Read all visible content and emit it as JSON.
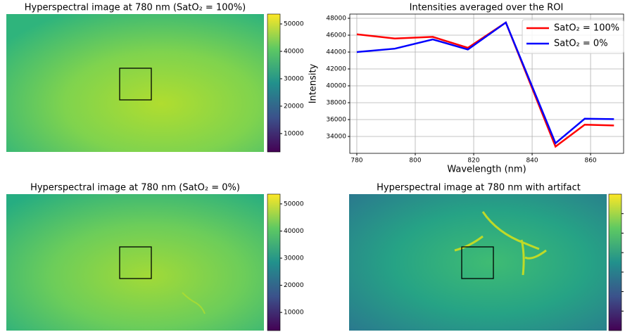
{
  "chart_data": [
    {
      "type": "heatmap",
      "title": "Hyperspectral image at 780 nm (SatO₂ = 100%)",
      "clim": [
        3300,
        53600
      ],
      "cticks": [
        10000,
        20000,
        30000,
        40000,
        50000
      ]
    },
    {
      "type": "line",
      "title": "Intensities averaged over the ROI",
      "x_label": "Wavelength (nm)",
      "y_label": "Intensity",
      "x": [
        780,
        793,
        806,
        818,
        831,
        848,
        858,
        868
      ],
      "series": [
        {
          "name": "SatO₂ = 100%",
          "color": "#ff0000",
          "values": [
            46100,
            45600,
            45800,
            44500,
            47500,
            32800,
            35400,
            35300
          ]
        },
        {
          "name": "SatO₂ = 0%",
          "color": "#0000ff",
          "values": [
            44000,
            44400,
            45500,
            44300,
            47500,
            33200,
            36100,
            36050
          ]
        }
      ],
      "xlim": [
        777.6,
        871.3
      ],
      "xticks": [
        780,
        800,
        820,
        840,
        860
      ],
      "ylim": [
        32000,
        48500
      ],
      "yticks": [
        34000,
        36000,
        38000,
        40000,
        42000,
        44000,
        46000,
        48000
      ],
      "grid": true,
      "legend": "upper right"
    },
    {
      "type": "heatmap",
      "title": "Hyperspectral image at 780 nm (SatO₂ = 0%)",
      "clim": [
        3300,
        53600
      ],
      "cticks": [
        10000,
        20000,
        30000,
        40000,
        50000
      ]
    },
    {
      "type": "heatmap",
      "title": "Hyperspectral image at 780 nm with artifact"
    }
  ]
}
